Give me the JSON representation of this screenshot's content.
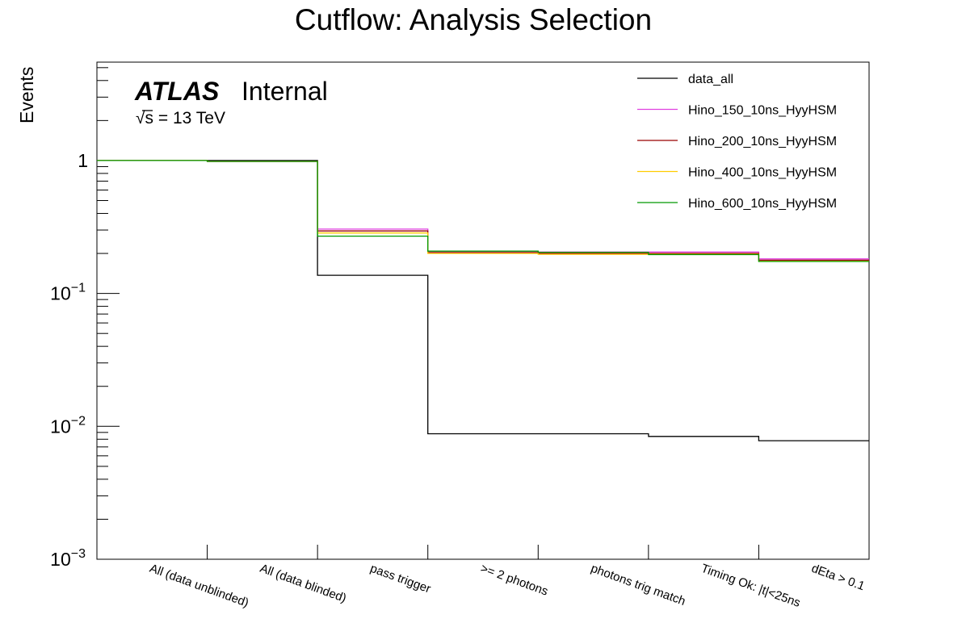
{
  "chart_data": {
    "type": "step",
    "title": "Cutflow: Analysis Selection",
    "ylabel": "Events",
    "xlabel": "",
    "yscale": "log",
    "ylim": [
      0.001,
      5.5
    ],
    "y_ticks": [
      {
        "value": 1,
        "base": "1",
        "exp": ""
      },
      {
        "value": 0.1,
        "base": "10",
        "exp": "−1"
      },
      {
        "value": 0.01,
        "base": "10",
        "exp": "−2"
      },
      {
        "value": 0.001,
        "base": "10",
        "exp": "−3"
      }
    ],
    "categories": [
      "All (data unblinded)",
      "All (data blinded)",
      "pass trigger",
      ">= 2 photons",
      "photons trig match",
      "Timing Ok: |t|<25ns",
      "dEta > 0.1"
    ],
    "series": [
      {
        "name": "data_all",
        "color": "#000000",
        "values": [
          1.0,
          1.0,
          0.137,
          0.0088,
          0.0088,
          0.0084,
          0.0078
        ]
      },
      {
        "name": "Hino_150_10ns_HyyHSM",
        "color": "#e040e0",
        "values": [
          1.0,
          0.985,
          0.305,
          0.207,
          0.205,
          0.205,
          0.182
        ]
      },
      {
        "name": "Hino_200_10ns_HyyHSM",
        "color": "#990000",
        "values": [
          1.0,
          0.985,
          0.295,
          0.203,
          0.2,
          0.2,
          0.178
        ]
      },
      {
        "name": "Hino_400_10ns_HyyHSM",
        "color": "#ffcc00",
        "values": [
          1.0,
          0.985,
          0.285,
          0.2,
          0.197,
          0.197,
          0.175
        ]
      },
      {
        "name": "Hino_600_10ns_HyyHSM",
        "color": "#009900",
        "values": [
          1.0,
          0.985,
          0.27,
          0.208,
          0.204,
          0.196,
          0.174
        ]
      }
    ],
    "legend_position": "top-right",
    "labels": {
      "experiment": "ATLAS",
      "status": "Internal",
      "energy_sqrt": "√s",
      "energy_rest": " = 13 TeV"
    }
  }
}
